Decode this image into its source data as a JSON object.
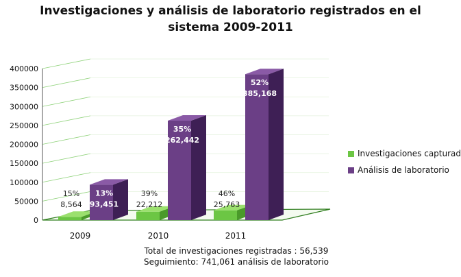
{
  "chart_data": {
    "type": "bar",
    "title_line1": "Investigaciones y análisis de laboratorio registrados en el",
    "title_line2": "sistema 2009-2011",
    "categories": [
      "2009",
      "2010",
      "2011"
    ],
    "ylim": [
      0,
      400000
    ],
    "yticks": [
      "0",
      "50000",
      "100000",
      "150000",
      "200000",
      "250000",
      "300000",
      "350000",
      "400000"
    ],
    "ytick_values": [
      0,
      50000,
      100000,
      150000,
      200000,
      250000,
      300000,
      350000,
      400000
    ],
    "series": [
      {
        "name": "Investigaciones capturadas",
        "color_front": "#6cc644",
        "color_side": "#4a9a2a",
        "color_top": "#9be06e",
        "values": [
          8564,
          22212,
          25763
        ],
        "value_labels": [
          "8,564",
          "22,212",
          "25,763"
        ],
        "percent_labels": [
          "15%",
          "39%",
          "46%"
        ]
      },
      {
        "name": "Análisis de laboratorio",
        "color_front": "#6b3f86",
        "color_side": "#3e1f55",
        "color_top": "#8a5aa6",
        "values": [
          93451,
          262442,
          385168
        ],
        "value_labels": [
          "93,451",
          "262,442",
          "385,168"
        ],
        "percent_labels": [
          "13%",
          "35%",
          "52%"
        ]
      }
    ],
    "legend_position": "right",
    "footer_line1": "Total de investigaciones registradas : 56,539",
    "footer_line2": "Seguimiento:  741,061 análisis de laboratorio"
  }
}
